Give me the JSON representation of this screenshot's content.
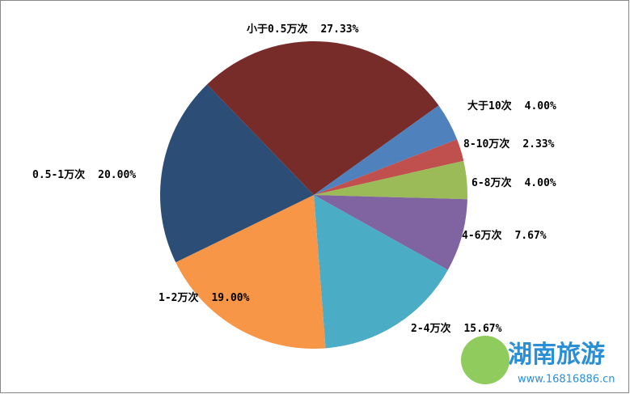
{
  "chart_data": {
    "type": "pie",
    "categories": [
      "小于0.5万次",
      "大于10次",
      "8-10万次",
      "6-8万次",
      "4-6万次",
      "2-4万次",
      "1-2万次",
      "0.5-1万次"
    ],
    "values": [
      27.33,
      4.0,
      2.33,
      4.0,
      7.67,
      15.67,
      19.0,
      20.0
    ],
    "value_labels": [
      "27.33%",
      "4.00%",
      "2.33%",
      "4.00%",
      "7.67%",
      "15.67%",
      "19.00%",
      "20.00%"
    ],
    "colors": [
      "#772c2a",
      "#4f81bd",
      "#c0504d",
      "#9bbb59",
      "#8064a2",
      "#4bacc6",
      "#f79646",
      "#2c4d75"
    ],
    "watermark": {
      "title": "湖南旅游",
      "url": "www.16816886.cn"
    }
  }
}
